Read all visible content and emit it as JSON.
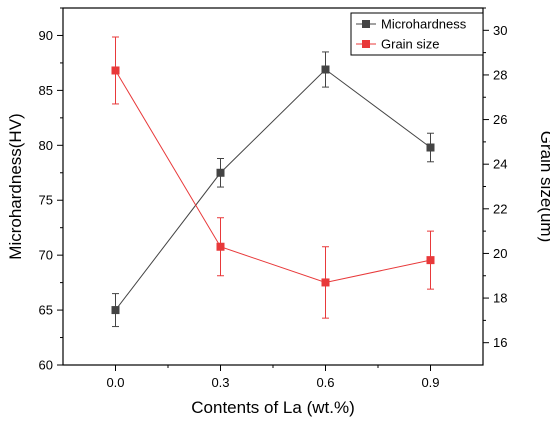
{
  "chart_data": {
    "type": "line",
    "xlabel": "Contents of  La (wt.%)",
    "x": [
      0.0,
      0.3,
      0.6,
      0.9
    ],
    "x_ticks": [
      "0.0",
      "0.3",
      "0.6",
      "0.9"
    ],
    "xlim": [
      -0.15,
      1.05
    ],
    "y_left": {
      "label": "Microhardness(HV)",
      "lim": [
        60,
        92.5
      ],
      "ticks": [
        "60",
        "65",
        "70",
        "75",
        "80",
        "85",
        "90"
      ]
    },
    "y_right": {
      "label": "Grain size(um)",
      "lim": [
        15,
        31
      ],
      "ticks": [
        "16",
        "18",
        "20",
        "22",
        "24",
        "26",
        "28",
        "30"
      ]
    },
    "series": [
      {
        "name": "Microhardness",
        "axis": "left",
        "color": "#444444",
        "values": [
          65.0,
          77.5,
          86.9,
          79.8
        ],
        "errors": [
          1.5,
          1.3,
          1.6,
          1.3
        ]
      },
      {
        "name": "Grain size",
        "axis": "right",
        "color": "#e8393a",
        "values": [
          28.2,
          20.3,
          18.7,
          19.7
        ],
        "errors": [
          1.5,
          1.3,
          1.6,
          1.3
        ]
      }
    ],
    "legend_position": "top-right",
    "grid": false
  }
}
